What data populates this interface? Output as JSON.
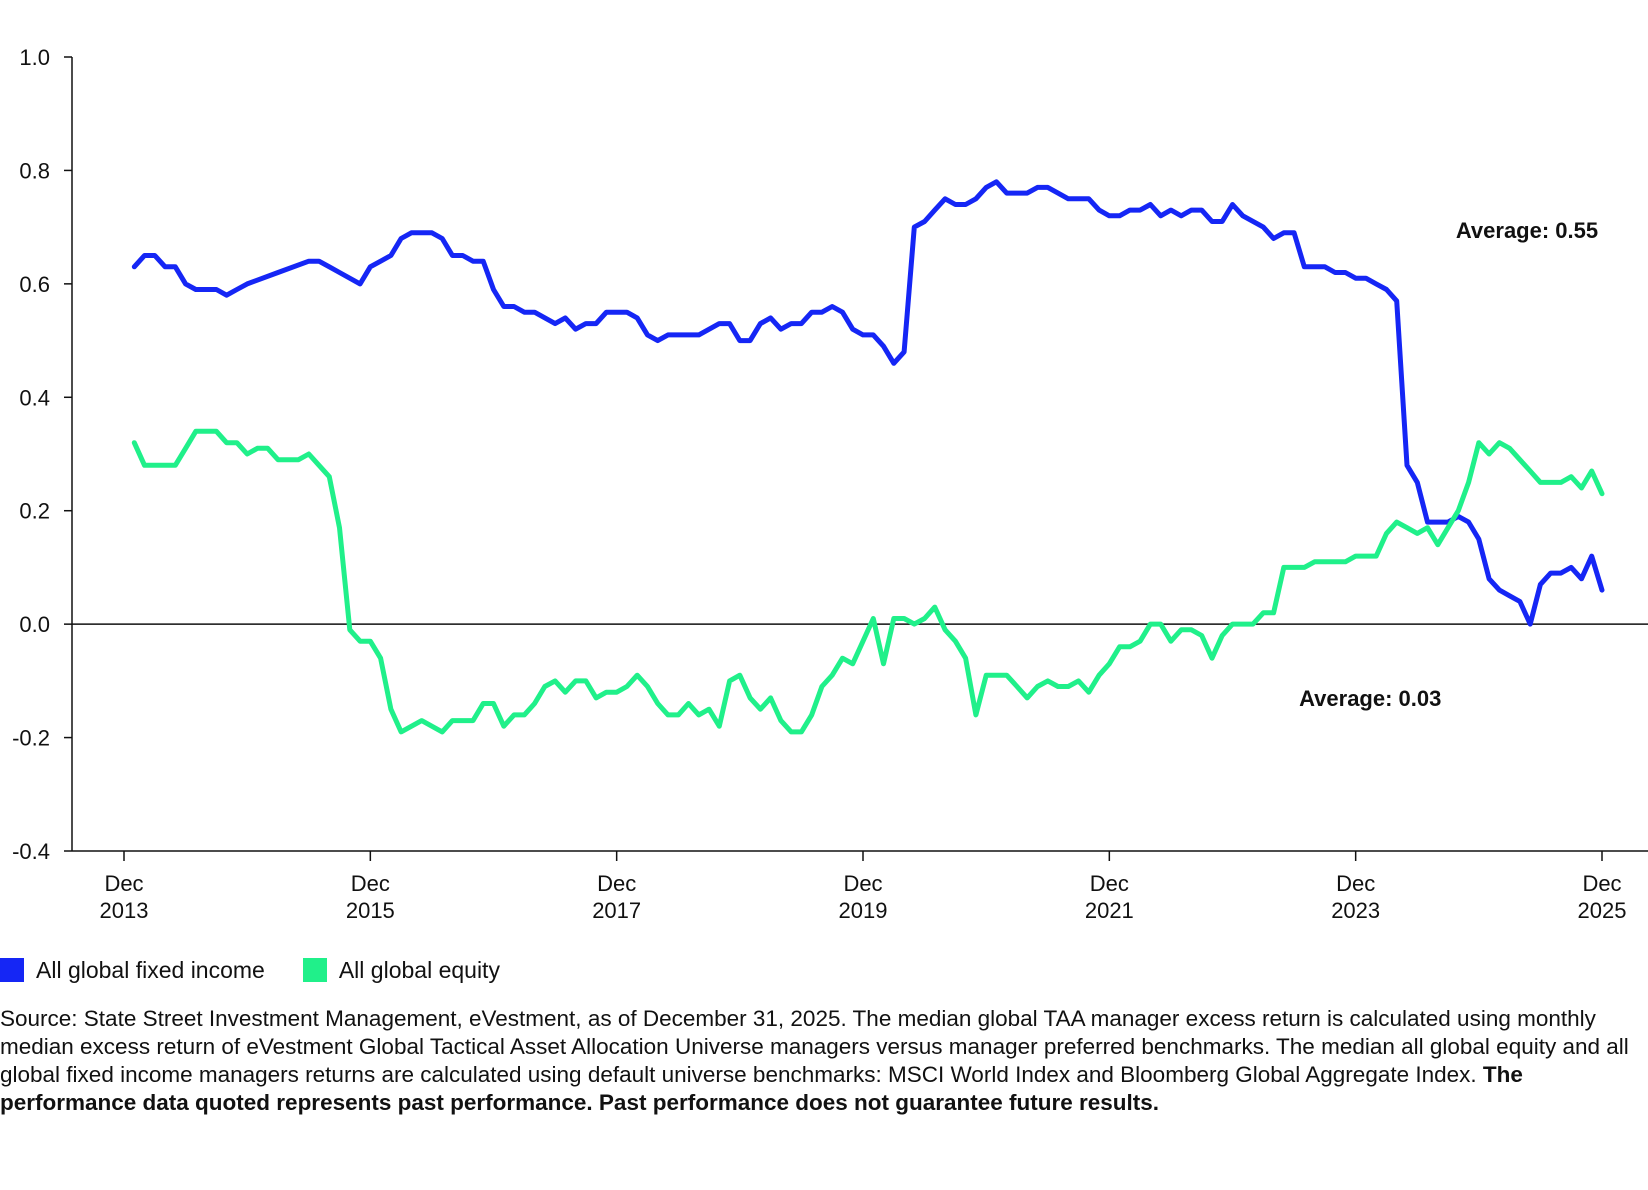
{
  "chart_data": {
    "type": "line",
    "title": "",
    "xlabel": "",
    "ylabel": "",
    "x_start": "2013-12",
    "x_end": "2025-12",
    "ylim": [
      -0.4,
      1.0
    ],
    "yticks": [
      -0.4,
      -0.2,
      0.0,
      0.2,
      0.4,
      0.6,
      0.8,
      1.0
    ],
    "ytick_labels": [
      "-0.4",
      "-0.2",
      "0.0",
      "0.2",
      "0.4",
      "0.6",
      "0.8",
      "1.0"
    ],
    "xtick_labels": [
      {
        "month": "Dec",
        "year": "2013",
        "x": "2013-12"
      },
      {
        "month": "Dec",
        "year": "2015",
        "x": "2015-12"
      },
      {
        "month": "Dec",
        "year": "2017",
        "x": "2017-12"
      },
      {
        "month": "Dec",
        "year": "2019",
        "x": "2019-12"
      },
      {
        "month": "Dec",
        "year": "2021",
        "x": "2021-12"
      },
      {
        "month": "Dec",
        "year": "2023",
        "x": "2023-12"
      },
      {
        "month": "Dec",
        "year": "2025",
        "x": "2025-12"
      }
    ],
    "grid": false,
    "legend_position": "bottom-left",
    "series": [
      {
        "name": "All global fixed income",
        "color": "#1526F5",
        "points": [
          [
            "2014-01",
            0.63
          ],
          [
            "2014-02",
            0.65
          ],
          [
            "2014-03",
            0.65
          ],
          [
            "2014-04",
            0.63
          ],
          [
            "2014-05",
            0.63
          ],
          [
            "2014-06",
            0.6
          ],
          [
            "2014-07",
            0.59
          ],
          [
            "2014-08",
            0.59
          ],
          [
            "2014-09",
            0.59
          ],
          [
            "2014-10",
            0.58
          ],
          [
            "2014-11",
            0.59
          ],
          [
            "2014-12",
            0.6
          ],
          [
            "2015-03",
            0.62
          ],
          [
            "2015-06",
            0.64
          ],
          [
            "2015-07",
            0.64
          ],
          [
            "2015-08",
            0.63
          ],
          [
            "2015-09",
            0.62
          ],
          [
            "2015-11",
            0.6
          ],
          [
            "2015-12",
            0.63
          ],
          [
            "2016-01",
            0.64
          ],
          [
            "2016-02",
            0.65
          ],
          [
            "2016-03",
            0.68
          ],
          [
            "2016-04",
            0.69
          ],
          [
            "2016-06",
            0.69
          ],
          [
            "2016-07",
            0.68
          ],
          [
            "2016-08",
            0.65
          ],
          [
            "2016-09",
            0.65
          ],
          [
            "2016-10",
            0.64
          ],
          [
            "2016-11",
            0.64
          ],
          [
            "2016-12",
            0.59
          ],
          [
            "2017-01",
            0.56
          ],
          [
            "2017-02",
            0.56
          ],
          [
            "2017-03",
            0.55
          ],
          [
            "2017-04",
            0.55
          ],
          [
            "2017-06",
            0.53
          ],
          [
            "2017-07",
            0.54
          ],
          [
            "2017-08",
            0.52
          ],
          [
            "2017-09",
            0.53
          ],
          [
            "2017-10",
            0.53
          ],
          [
            "2017-11",
            0.55
          ],
          [
            "2018-01",
            0.55
          ],
          [
            "2018-02",
            0.54
          ],
          [
            "2018-03",
            0.51
          ],
          [
            "2018-04",
            0.5
          ],
          [
            "2018-05",
            0.51
          ],
          [
            "2018-07",
            0.51
          ],
          [
            "2018-08",
            0.51
          ],
          [
            "2018-10",
            0.53
          ],
          [
            "2018-11",
            0.53
          ],
          [
            "2018-12",
            0.5
          ],
          [
            "2019-01",
            0.5
          ],
          [
            "2019-02",
            0.53
          ],
          [
            "2019-03",
            0.54
          ],
          [
            "2019-04",
            0.52
          ],
          [
            "2019-05",
            0.53
          ],
          [
            "2019-06",
            0.53
          ],
          [
            "2019-07",
            0.55
          ],
          [
            "2019-08",
            0.55
          ],
          [
            "2019-09",
            0.56
          ],
          [
            "2019-10",
            0.55
          ],
          [
            "2019-11",
            0.52
          ],
          [
            "2019-12",
            0.51
          ],
          [
            "2020-01",
            0.51
          ],
          [
            "2020-02",
            0.49
          ],
          [
            "2020-03",
            0.46
          ],
          [
            "2020-04",
            0.48
          ],
          [
            "2020-05",
            0.7
          ],
          [
            "2020-06",
            0.71
          ],
          [
            "2020-07",
            0.73
          ],
          [
            "2020-08",
            0.75
          ],
          [
            "2020-09",
            0.74
          ],
          [
            "2020-10",
            0.74
          ],
          [
            "2020-11",
            0.75
          ],
          [
            "2020-12",
            0.77
          ],
          [
            "2021-01",
            0.78
          ],
          [
            "2021-02",
            0.76
          ],
          [
            "2021-04",
            0.76
          ],
          [
            "2021-05",
            0.77
          ],
          [
            "2021-06",
            0.77
          ],
          [
            "2021-07",
            0.76
          ],
          [
            "2021-08",
            0.75
          ],
          [
            "2021-10",
            0.75
          ],
          [
            "2021-11",
            0.73
          ],
          [
            "2021-12",
            0.72
          ],
          [
            "2022-01",
            0.72
          ],
          [
            "2022-02",
            0.73
          ],
          [
            "2022-03",
            0.73
          ],
          [
            "2022-04",
            0.74
          ],
          [
            "2022-05",
            0.72
          ],
          [
            "2022-06",
            0.73
          ],
          [
            "2022-07",
            0.72
          ],
          [
            "2022-08",
            0.73
          ],
          [
            "2022-09",
            0.73
          ],
          [
            "2022-10",
            0.71
          ],
          [
            "2022-11",
            0.71
          ],
          [
            "2022-12",
            0.74
          ],
          [
            "2023-01",
            0.72
          ],
          [
            "2023-03",
            0.7
          ],
          [
            "2023-04",
            0.68
          ],
          [
            "2023-05",
            0.69
          ],
          [
            "2023-06",
            0.69
          ],
          [
            "2023-07",
            0.63
          ],
          [
            "2023-09",
            0.63
          ],
          [
            "2023-10",
            0.62
          ],
          [
            "2023-11",
            0.62
          ],
          [
            "2023-12",
            0.61
          ],
          [
            "2024-01",
            0.61
          ],
          [
            "2024-02",
            0.6
          ],
          [
            "2024-03",
            0.59
          ],
          [
            "2024-04",
            0.57
          ],
          [
            "2024-05",
            0.28
          ],
          [
            "2024-06",
            0.25
          ],
          [
            "2024-07",
            0.18
          ],
          [
            "2024-08",
            0.18
          ],
          [
            "2024-09",
            0.18
          ],
          [
            "2024-10",
            0.19
          ],
          [
            "2024-11",
            0.18
          ],
          [
            "2024-12",
            0.15
          ],
          [
            "2025-01",
            0.08
          ],
          [
            "2025-02",
            0.06
          ],
          [
            "2025-03",
            0.05
          ],
          [
            "2025-04",
            0.04
          ],
          [
            "2025-05",
            0.0
          ],
          [
            "2025-06",
            0.07
          ],
          [
            "2025-07",
            0.09
          ],
          [
            "2025-08",
            0.09
          ],
          [
            "2025-09",
            0.1
          ],
          [
            "2025-10",
            0.08
          ],
          [
            "2025-11",
            0.12
          ],
          [
            "2025-12",
            0.06
          ]
        ],
        "annotation": "Average: 0.55"
      },
      {
        "name": "All global equity",
        "color": "#20F08A",
        "points": [
          [
            "2014-01",
            0.32
          ],
          [
            "2014-02",
            0.28
          ],
          [
            "2014-05",
            0.28
          ],
          [
            "2014-06",
            0.31
          ],
          [
            "2014-07",
            0.34
          ],
          [
            "2014-09",
            0.34
          ],
          [
            "2014-10",
            0.32
          ],
          [
            "2014-11",
            0.32
          ],
          [
            "2014-12",
            0.3
          ],
          [
            "2015-01",
            0.31
          ],
          [
            "2015-02",
            0.31
          ],
          [
            "2015-03",
            0.29
          ],
          [
            "2015-05",
            0.29
          ],
          [
            "2015-06",
            0.3
          ],
          [
            "2015-07",
            0.28
          ],
          [
            "2015-08",
            0.26
          ],
          [
            "2015-09",
            0.17
          ],
          [
            "2015-10",
            -0.01
          ],
          [
            "2015-11",
            -0.03
          ],
          [
            "2015-12",
            -0.03
          ],
          [
            "2016-01",
            -0.06
          ],
          [
            "2016-02",
            -0.15
          ],
          [
            "2016-03",
            -0.19
          ],
          [
            "2016-05",
            -0.17
          ],
          [
            "2016-07",
            -0.19
          ],
          [
            "2016-08",
            -0.17
          ],
          [
            "2016-10",
            -0.17
          ],
          [
            "2016-11",
            -0.14
          ],
          [
            "2016-12",
            -0.14
          ],
          [
            "2017-01",
            -0.18
          ],
          [
            "2017-02",
            -0.16
          ],
          [
            "2017-03",
            -0.16
          ],
          [
            "2017-04",
            -0.14
          ],
          [
            "2017-05",
            -0.11
          ],
          [
            "2017-06",
            -0.1
          ],
          [
            "2017-07",
            -0.12
          ],
          [
            "2017-08",
            -0.1
          ],
          [
            "2017-09",
            -0.1
          ],
          [
            "2017-10",
            -0.13
          ],
          [
            "2017-11",
            -0.12
          ],
          [
            "2017-12",
            -0.12
          ],
          [
            "2018-01",
            -0.11
          ],
          [
            "2018-02",
            -0.09
          ],
          [
            "2018-03",
            -0.11
          ],
          [
            "2018-04",
            -0.14
          ],
          [
            "2018-05",
            -0.16
          ],
          [
            "2018-06",
            -0.16
          ],
          [
            "2018-07",
            -0.14
          ],
          [
            "2018-08",
            -0.16
          ],
          [
            "2018-09",
            -0.15
          ],
          [
            "2018-10",
            -0.18
          ],
          [
            "2018-11",
            -0.1
          ],
          [
            "2018-12",
            -0.09
          ],
          [
            "2019-01",
            -0.13
          ],
          [
            "2019-02",
            -0.15
          ],
          [
            "2019-03",
            -0.13
          ],
          [
            "2019-04",
            -0.17
          ],
          [
            "2019-05",
            -0.19
          ],
          [
            "2019-06",
            -0.19
          ],
          [
            "2019-07",
            -0.16
          ],
          [
            "2019-08",
            -0.11
          ],
          [
            "2019-09",
            -0.09
          ],
          [
            "2019-10",
            -0.06
          ],
          [
            "2019-11",
            -0.07
          ],
          [
            "2019-12",
            -0.03
          ],
          [
            "2020-01",
            0.01
          ],
          [
            "2020-02",
            -0.07
          ],
          [
            "2020-03",
            0.01
          ],
          [
            "2020-04",
            0.01
          ],
          [
            "2020-05",
            0.0
          ],
          [
            "2020-06",
            0.01
          ],
          [
            "2020-07",
            0.03
          ],
          [
            "2020-08",
            -0.01
          ],
          [
            "2020-09",
            -0.03
          ],
          [
            "2020-10",
            -0.06
          ],
          [
            "2020-11",
            -0.16
          ],
          [
            "2020-12",
            -0.09
          ],
          [
            "2021-02",
            -0.09
          ],
          [
            "2021-03",
            -0.11
          ],
          [
            "2021-04",
            -0.13
          ],
          [
            "2021-05",
            -0.11
          ],
          [
            "2021-06",
            -0.1
          ],
          [
            "2021-07",
            -0.11
          ],
          [
            "2021-08",
            -0.11
          ],
          [
            "2021-09",
            -0.1
          ],
          [
            "2021-10",
            -0.12
          ],
          [
            "2021-11",
            -0.09
          ],
          [
            "2021-12",
            -0.07
          ],
          [
            "2022-01",
            -0.04
          ],
          [
            "2022-02",
            -0.04
          ],
          [
            "2022-03",
            -0.03
          ],
          [
            "2022-04",
            0.0
          ],
          [
            "2022-05",
            0.0
          ],
          [
            "2022-06",
            -0.03
          ],
          [
            "2022-07",
            -0.01
          ],
          [
            "2022-08",
            -0.01
          ],
          [
            "2022-09",
            -0.02
          ],
          [
            "2022-10",
            -0.06
          ],
          [
            "2022-11",
            -0.02
          ],
          [
            "2022-12",
            0.0
          ],
          [
            "2023-01",
            0.0
          ],
          [
            "2023-02",
            0.0
          ],
          [
            "2023-03",
            0.02
          ],
          [
            "2023-04",
            0.02
          ],
          [
            "2023-05",
            0.1
          ],
          [
            "2023-06",
            0.1
          ],
          [
            "2023-07",
            0.1
          ],
          [
            "2023-08",
            0.11
          ],
          [
            "2023-10",
            0.11
          ],
          [
            "2023-11",
            0.11
          ],
          [
            "2023-12",
            0.12
          ],
          [
            "2024-02",
            0.12
          ],
          [
            "2024-03",
            0.16
          ],
          [
            "2024-04",
            0.18
          ],
          [
            "2024-05",
            0.17
          ],
          [
            "2024-06",
            0.16
          ],
          [
            "2024-07",
            0.17
          ],
          [
            "2024-08",
            0.14
          ],
          [
            "2024-09",
            0.17
          ],
          [
            "2024-10",
            0.2
          ],
          [
            "2024-11",
            0.25
          ],
          [
            "2024-12",
            0.32
          ],
          [
            "2025-01",
            0.3
          ],
          [
            "2025-02",
            0.32
          ],
          [
            "2025-03",
            0.31
          ],
          [
            "2025-04",
            0.29
          ],
          [
            "2025-05",
            0.27
          ],
          [
            "2025-06",
            0.25
          ],
          [
            "2025-07",
            0.25
          ],
          [
            "2025-08",
            0.25
          ],
          [
            "2025-09",
            0.26
          ],
          [
            "2025-10",
            0.24
          ],
          [
            "2025-11",
            0.27
          ],
          [
            "2025-12",
            0.23
          ]
        ],
        "annotation": "Average: 0.03"
      }
    ]
  },
  "legend": {
    "items": [
      {
        "label": "All global fixed income",
        "color": "#1526F5"
      },
      {
        "label": "All global equity",
        "color": "#20F08A"
      }
    ]
  },
  "note": {
    "source_text": "Source: State Street Investment Management, eVestment, as of December 31, 2025. The median global TAA manager excess return is calculated using monthly median excess return of eVestment Global Tactical Asset Allocation Universe managers versus manager preferred benchmarks. The median all global equity and all global fixed income managers returns are calculated using default universe benchmarks: MSCI World Index and Bloomberg Global Aggregate Index.",
    "bold_text": "The performance data quoted represents past performance. Past performance does not guarantee future results."
  }
}
